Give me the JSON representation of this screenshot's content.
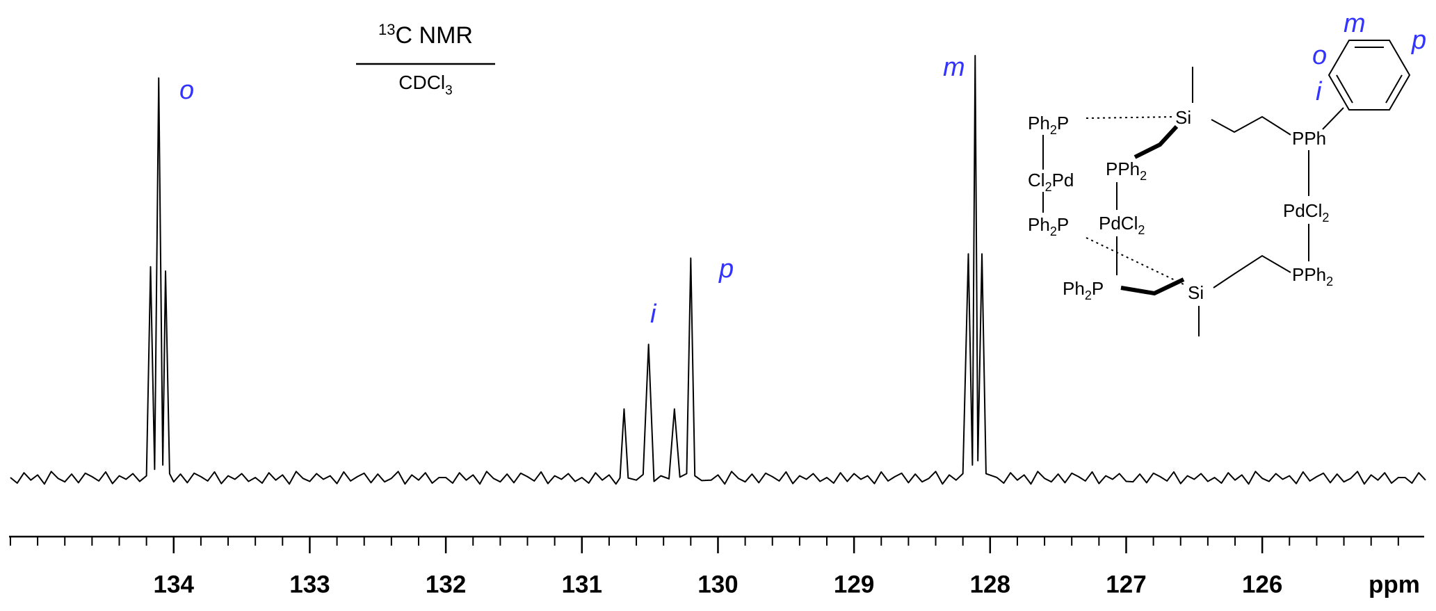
{
  "chart_data": {
    "type": "line",
    "title": {
      "mass": "13",
      "text": "C NMR"
    },
    "subtitle": [
      "CDCl",
      "3"
    ],
    "xlabel": "ppm",
    "color": "#000000",
    "xlim": [
      135.21,
      124.81
    ],
    "ylim": [
      0,
      100
    ],
    "xticks": [
      134,
      133,
      132,
      131,
      130,
      129,
      128,
      127,
      126
    ],
    "xminorticks": [
      135.2,
      135.0,
      134.8,
      134.6,
      134.4,
      134.2,
      133.8,
      133.6,
      133.4,
      133.2,
      132.8,
      132.6,
      132.4,
      132.2,
      131.8,
      131.6,
      131.4,
      131.2,
      130.8,
      130.6,
      130.4,
      130.2,
      129.8,
      129.6,
      129.4,
      129.2,
      128.8,
      128.6,
      128.4,
      128.2,
      127.8,
      127.6,
      127.4,
      127.2,
      126.8,
      126.6,
      126.4,
      126.2,
      125.8,
      125.6,
      125.4,
      125.2,
      125.0
    ],
    "annotations": [
      "o",
      "i",
      "p",
      "m"
    ],
    "x": [
      135.2,
      135.15,
      135.1,
      135.05,
      135.0,
      134.95,
      134.9,
      134.85,
      134.8,
      134.75,
      134.7,
      134.65,
      134.6,
      134.55,
      134.5,
      134.45,
      134.4,
      134.35,
      134.3,
      134.25,
      134.2,
      134.17,
      134.14,
      134.11,
      134.08,
      134.06,
      134.03,
      134.0,
      133.95,
      133.9,
      133.85,
      133.8,
      133.75,
      133.7,
      133.65,
      133.6,
      133.55,
      133.5,
      133.45,
      133.4,
      133.35,
      133.3,
      133.25,
      133.2,
      133.15,
      133.1,
      133.05,
      133.0,
      132.95,
      132.9,
      132.85,
      132.8,
      132.75,
      132.7,
      132.65,
      132.6,
      132.55,
      132.5,
      132.45,
      132.4,
      132.35,
      132.3,
      132.25,
      132.2,
      132.15,
      132.1,
      132.05,
      132.0,
      131.95,
      131.9,
      131.85,
      131.8,
      131.75,
      131.7,
      131.65,
      131.6,
      131.55,
      131.5,
      131.45,
      131.4,
      131.35,
      131.3,
      131.25,
      131.2,
      131.15,
      131.1,
      131.05,
      131.0,
      130.95,
      130.9,
      130.85,
      130.8,
      130.75,
      130.72,
      130.69,
      130.66,
      130.6,
      130.55,
      130.51,
      130.47,
      130.42,
      130.36,
      130.32,
      130.28,
      130.23,
      130.2,
      130.17,
      130.12,
      130.05,
      130.0,
      129.95,
      129.9,
      129.85,
      129.8,
      129.75,
      129.7,
      129.65,
      129.6,
      129.55,
      129.5,
      129.45,
      129.4,
      129.35,
      129.3,
      129.25,
      129.2,
      129.15,
      129.1,
      129.05,
      129.0,
      128.95,
      128.9,
      128.85,
      128.8,
      128.75,
      128.7,
      128.65,
      128.6,
      128.55,
      128.5,
      128.45,
      128.4,
      128.35,
      128.3,
      128.25,
      128.2,
      128.16,
      128.13,
      128.11,
      128.09,
      128.06,
      128.03,
      127.95,
      127.9,
      127.85,
      127.8,
      127.75,
      127.7,
      127.65,
      127.6,
      127.55,
      127.5,
      127.45,
      127.4,
      127.35,
      127.3,
      127.25,
      127.2,
      127.15,
      127.1,
      127.05,
      127.0,
      126.95,
      126.9,
      126.85,
      126.8,
      126.75,
      126.7,
      126.65,
      126.6,
      126.55,
      126.5,
      126.45,
      126.4,
      126.35,
      126.3,
      126.25,
      126.2,
      126.15,
      126.1,
      126.05,
      126.0,
      125.95,
      125.9,
      125.85,
      125.8,
      125.75,
      125.7,
      125.65,
      125.6,
      125.55,
      125.5,
      125.45,
      125.4,
      125.35,
      125.3,
      125.25,
      125.2,
      125.15,
      125.1,
      125.05,
      125.0,
      124.95,
      124.9,
      124.85,
      124.8
    ],
    "values": [
      2.1,
      0.8,
      3.2,
      1.5,
      2.7,
      0.6,
      3.5,
      1.9,
      1.1,
      2.9,
      0.9,
      3.1,
      2.3,
      1.3,
      3.4,
      0.7,
      2.5,
      1.7,
      3.0,
      1.2,
      2.5,
      51,
      4,
      94.8,
      5,
      50,
      3,
      1.1,
      2.9,
      0.9,
      3.1,
      2.3,
      1.3,
      3.4,
      0.7,
      2.5,
      1.7,
      3.0,
      1.2,
      2.1,
      0.8,
      3.2,
      1.5,
      2.7,
      0.6,
      3.5,
      1.9,
      1.2,
      3.0,
      1.7,
      2.5,
      0.7,
      3.4,
      1.3,
      2.3,
      3.1,
      0.9,
      2.9,
      1.1,
      1.9,
      3.5,
      0.6,
      2.7,
      1.5,
      3.2,
      0.8,
      2.1,
      2.1,
      0.8,
      3.2,
      1.5,
      2.7,
      0.6,
      3.5,
      1.9,
      1.1,
      2.9,
      0.9,
      3.1,
      2.3,
      1.3,
      3.4,
      0.7,
      2.5,
      1.7,
      3.0,
      1.2,
      2.1,
      0.8,
      3.2,
      1.5,
      2.7,
      0.6,
      2,
      18,
      2,
      1.5,
      2.8,
      33,
      1.2,
      2.5,
      1.8,
      18,
      2.2,
      3,
      53,
      2.5,
      1.4,
      1.5,
      2.7,
      0.6,
      3.5,
      1.9,
      1.1,
      2.9,
      0.9,
      3.1,
      2.3,
      1.3,
      3.4,
      0.7,
      2.5,
      1.7,
      3.0,
      1.2,
      2.1,
      0.8,
      3.2,
      1.2,
      3.0,
      1.7,
      2.5,
      0.7,
      3.4,
      1.3,
      2.3,
      3.1,
      0.9,
      2.9,
      1.1,
      1.9,
      3.5,
      0.6,
      2.7,
      1.5,
      3,
      54,
      5,
      100,
      6,
      54,
      3,
      2.1,
      0.8,
      3.2,
      1.5,
      2.7,
      0.6,
      3.5,
      1.9,
      1.1,
      2.9,
      0.9,
      3.1,
      2.3,
      1.3,
      3.4,
      0.7,
      2.5,
      1.7,
      3.0,
      1.2,
      1.1,
      2.9,
      0.9,
      3.1,
      2.3,
      1.3,
      3.4,
      0.7,
      2.5,
      1.7,
      3.0,
      1.2,
      2.1,
      0.8,
      3.2,
      1.5,
      2.7,
      0.6,
      3.5,
      1.9,
      1.2,
      3.0,
      1.7,
      2.5,
      0.7,
      3.4,
      1.3,
      2.3,
      3.1,
      0.9,
      2.9,
      1.1,
      1.9,
      3.5,
      0.6,
      2.7,
      1.5,
      3.2,
      0.8,
      2.1,
      2.1,
      0.8,
      3.2,
      1.5
    ]
  },
  "structure": {
    "labels": [
      [
        "Ph",
        "2",
        "P"
      ],
      [
        "Si"
      ],
      [
        "PPh"
      ],
      [
        "PPh",
        "2"
      ],
      [
        "Cl",
        "2",
        "Pd"
      ],
      [
        "PdCl",
        "2"
      ],
      [
        "Ph",
        "2",
        "P"
      ],
      [
        "PdCl",
        "2"
      ],
      [
        "Ph",
        "2",
        "P"
      ],
      [
        "Si"
      ],
      [
        "PPh",
        "2"
      ]
    ],
    "ring_labels": [
      "o",
      "m",
      "p",
      "i"
    ]
  }
}
